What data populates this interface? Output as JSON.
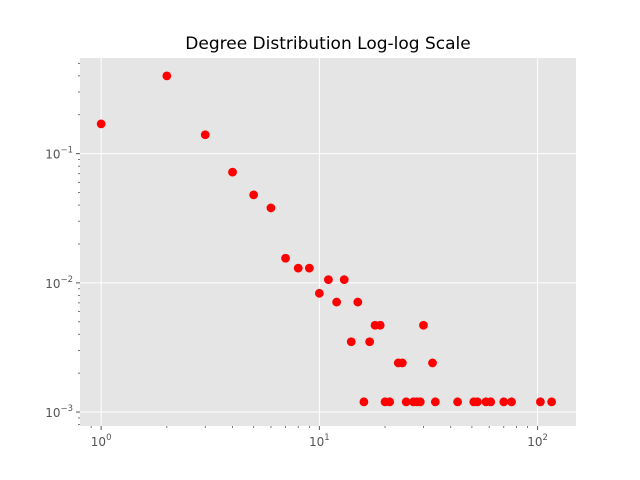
{
  "chart_data": {
    "type": "scatter",
    "title": "Degree Distribution Log-log Scale",
    "xlabel": "",
    "ylabel": "",
    "xscale": "log",
    "yscale": "log",
    "xlim": [
      0.8,
      150
    ],
    "ylim": [
      0.00078,
      0.55
    ],
    "grid": true,
    "legend": "none",
    "style": "ggplot",
    "colors": {
      "background": "#E5E5E5",
      "grid": "#FFFFFF",
      "marker": "#FF0000",
      "tick_text": "#555555"
    },
    "x_ticks": [
      {
        "value": 1,
        "base": "10",
        "exp": "0"
      },
      {
        "value": 10,
        "base": "10",
        "exp": "1"
      },
      {
        "value": 100,
        "base": "10",
        "exp": "2"
      }
    ],
    "y_ticks": [
      {
        "value": 0.001,
        "base": "10",
        "exp": "−3"
      },
      {
        "value": 0.01,
        "base": "10",
        "exp": "−2"
      },
      {
        "value": 0.1,
        "base": "10",
        "exp": "−1"
      }
    ],
    "series": [
      {
        "x": [
          1,
          2,
          3,
          4,
          5,
          6,
          7,
          8,
          9,
          10,
          11,
          12,
          13,
          14,
          15,
          16,
          17,
          18,
          19,
          20,
          21,
          23,
          24,
          25,
          27,
          28,
          29,
          30,
          33,
          34,
          43,
          51,
          53,
          58,
          61,
          70,
          76,
          103,
          116
        ],
        "y": [
          0.17,
          0.4,
          0.14,
          0.072,
          0.048,
          0.038,
          0.0155,
          0.013,
          0.013,
          0.0083,
          0.0106,
          0.0071,
          0.0106,
          0.0035,
          0.0071,
          0.0012,
          0.0035,
          0.0047,
          0.0047,
          0.0012,
          0.0012,
          0.0024,
          0.0024,
          0.0012,
          0.0012,
          0.0012,
          0.0012,
          0.0047,
          0.0024,
          0.0012,
          0.0012,
          0.0012,
          0.0012,
          0.0012,
          0.0012,
          0.0012,
          0.0012,
          0.0012,
          0.0012
        ]
      }
    ]
  }
}
